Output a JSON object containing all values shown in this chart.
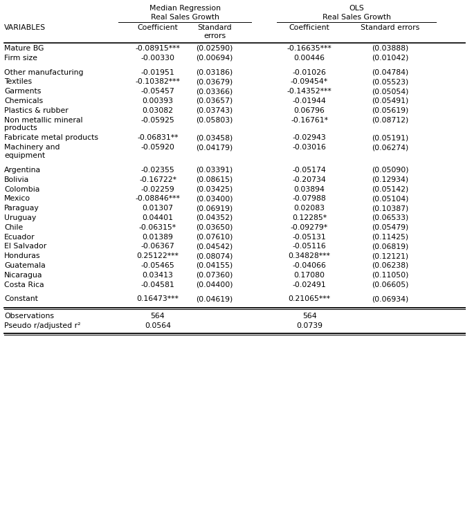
{
  "title_med_1": "Median Regression",
  "title_med_2": "Real Sales Growth",
  "title_ols_1": "OLS",
  "title_ols_2": "Real Sales Growth",
  "variables_header": "VARIABLES",
  "col_header_1": "Coefficient",
  "col_header_2": "Standard\nerrors",
  "col_header_3": "Coefficient",
  "col_header_4": "Standard errors",
  "rows": [
    {
      "label": "Mature BG",
      "c1": "-0.08915***",
      "c2": "(0.02590)",
      "c3": "-0.16635***",
      "c4": "(0.03888)",
      "spacer": false,
      "multiline": false
    },
    {
      "label": "Firm size",
      "c1": "-0.00330",
      "c2": "(0.00694)",
      "c3": "0.00446",
      "c4": "(0.01042)",
      "spacer": false,
      "multiline": false
    },
    {
      "label": "",
      "c1": "",
      "c2": "",
      "c3": "",
      "c4": "",
      "spacer": true,
      "multiline": false
    },
    {
      "label": "Other manufacturing",
      "c1": "-0.01951",
      "c2": "(0.03186)",
      "c3": "-0.01026",
      "c4": "(0.04784)",
      "spacer": false,
      "multiline": false
    },
    {
      "label": "Textiles",
      "c1": "-0.10382***",
      "c2": "(0.03679)",
      "c3": "-0.09454*",
      "c4": "(0.05523)",
      "spacer": false,
      "multiline": false
    },
    {
      "label": "Garments",
      "c1": "-0.05457",
      "c2": "(0.03366)",
      "c3": "-0.14352***",
      "c4": "(0.05054)",
      "spacer": false,
      "multiline": false
    },
    {
      "label": "Chemicals",
      "c1": "0.00393",
      "c2": "(0.03657)",
      "c3": "-0.01944",
      "c4": "(0.05491)",
      "spacer": false,
      "multiline": false
    },
    {
      "label": "Plastics & rubber",
      "c1": "0.03082",
      "c2": "(0.03743)",
      "c3": "0.06796",
      "c4": "(0.05619)",
      "spacer": false,
      "multiline": false
    },
    {
      "label": "Non metallic mineral\nproducts",
      "c1": "-0.05925",
      "c2": "(0.05803)",
      "c3": "-0.16761*",
      "c4": "(0.08712)",
      "spacer": false,
      "multiline": true
    },
    {
      "label": "Fabricate metal products",
      "c1": "-0.06831**",
      "c2": "(0.03458)",
      "c3": "-0.02943",
      "c4": "(0.05191)",
      "spacer": false,
      "multiline": false
    },
    {
      "label": "Machinery and\nequipment",
      "c1": "-0.05920",
      "c2": "(0.04179)",
      "c3": "-0.03016",
      "c4": "(0.06274)",
      "spacer": false,
      "multiline": true
    },
    {
      "label": "",
      "c1": "",
      "c2": "",
      "c3": "",
      "c4": "",
      "spacer": true,
      "multiline": false
    },
    {
      "label": "Argentina",
      "c1": "-0.02355",
      "c2": "(0.03391)",
      "c3": "-0.05174",
      "c4": "(0.05090)",
      "spacer": false,
      "multiline": false
    },
    {
      "label": "Bolivia",
      "c1": "-0.16722*",
      "c2": "(0.08615)",
      "c3": "-0.20734",
      "c4": "(0.12934)",
      "spacer": false,
      "multiline": false
    },
    {
      "label": "Colombia",
      "c1": "-0.02259",
      "c2": "(0.03425)",
      "c3": "0.03894",
      "c4": "(0.05142)",
      "spacer": false,
      "multiline": false
    },
    {
      "label": "Mexico",
      "c1": "-0.08846***",
      "c2": "(0.03400)",
      "c3": "-0.07988",
      "c4": "(0.05104)",
      "spacer": false,
      "multiline": false
    },
    {
      "label": "Paraguay",
      "c1": "0.01307",
      "c2": "(0.06919)",
      "c3": "0.02083",
      "c4": "(0.10387)",
      "spacer": false,
      "multiline": false
    },
    {
      "label": "Uruguay",
      "c1": "0.04401",
      "c2": "(0.04352)",
      "c3": "0.12285*",
      "c4": "(0.06533)",
      "spacer": false,
      "multiline": false
    },
    {
      "label": "Chile",
      "c1": "-0.06315*",
      "c2": "(0.03650)",
      "c3": "-0.09279*",
      "c4": "(0.05479)",
      "spacer": false,
      "multiline": false
    },
    {
      "label": "Ecuador",
      "c1": "0.01389",
      "c2": "(0.07610)",
      "c3": "-0.05131",
      "c4": "(0.11425)",
      "spacer": false,
      "multiline": false
    },
    {
      "label": "El Salvador",
      "c1": "-0.06367",
      "c2": "(0.04542)",
      "c3": "-0.05116",
      "c4": "(0.06819)",
      "spacer": false,
      "multiline": false
    },
    {
      "label": "Honduras",
      "c1": "0.25122***",
      "c2": "(0.08074)",
      "c3": "0.34828***",
      "c4": "(0.12121)",
      "spacer": false,
      "multiline": false
    },
    {
      "label": "Guatemala",
      "c1": "-0.05465",
      "c2": "(0.04155)",
      "c3": "-0.04066",
      "c4": "(0.06238)",
      "spacer": false,
      "multiline": false
    },
    {
      "label": "Nicaragua",
      "c1": "0.03413",
      "c2": "(0.07360)",
      "c3": "0.17080",
      "c4": "(0.11050)",
      "spacer": false,
      "multiline": false
    },
    {
      "label": "Costa Rica",
      "c1": "-0.04581",
      "c2": "(0.04400)",
      "c3": "-0.02491",
      "c4": "(0.06605)",
      "spacer": false,
      "multiline": false
    },
    {
      "label": "",
      "c1": "",
      "c2": "",
      "c3": "",
      "c4": "",
      "spacer": true,
      "multiline": false
    },
    {
      "label": "Constant",
      "c1": "0.16473***",
      "c2": "(0.04619)",
      "c3": "0.21065***",
      "c4": "(0.06934)",
      "spacer": false,
      "multiline": false
    }
  ],
  "footer_rows": [
    {
      "label": "Observations",
      "v1": "564",
      "v2": "564"
    },
    {
      "label": "Pseudo r/adjusted r²",
      "v1": "0.0564",
      "v2": "0.0739"
    }
  ],
  "font_size": 7.8,
  "bg_color": "#ffffff",
  "text_color": "#000000"
}
